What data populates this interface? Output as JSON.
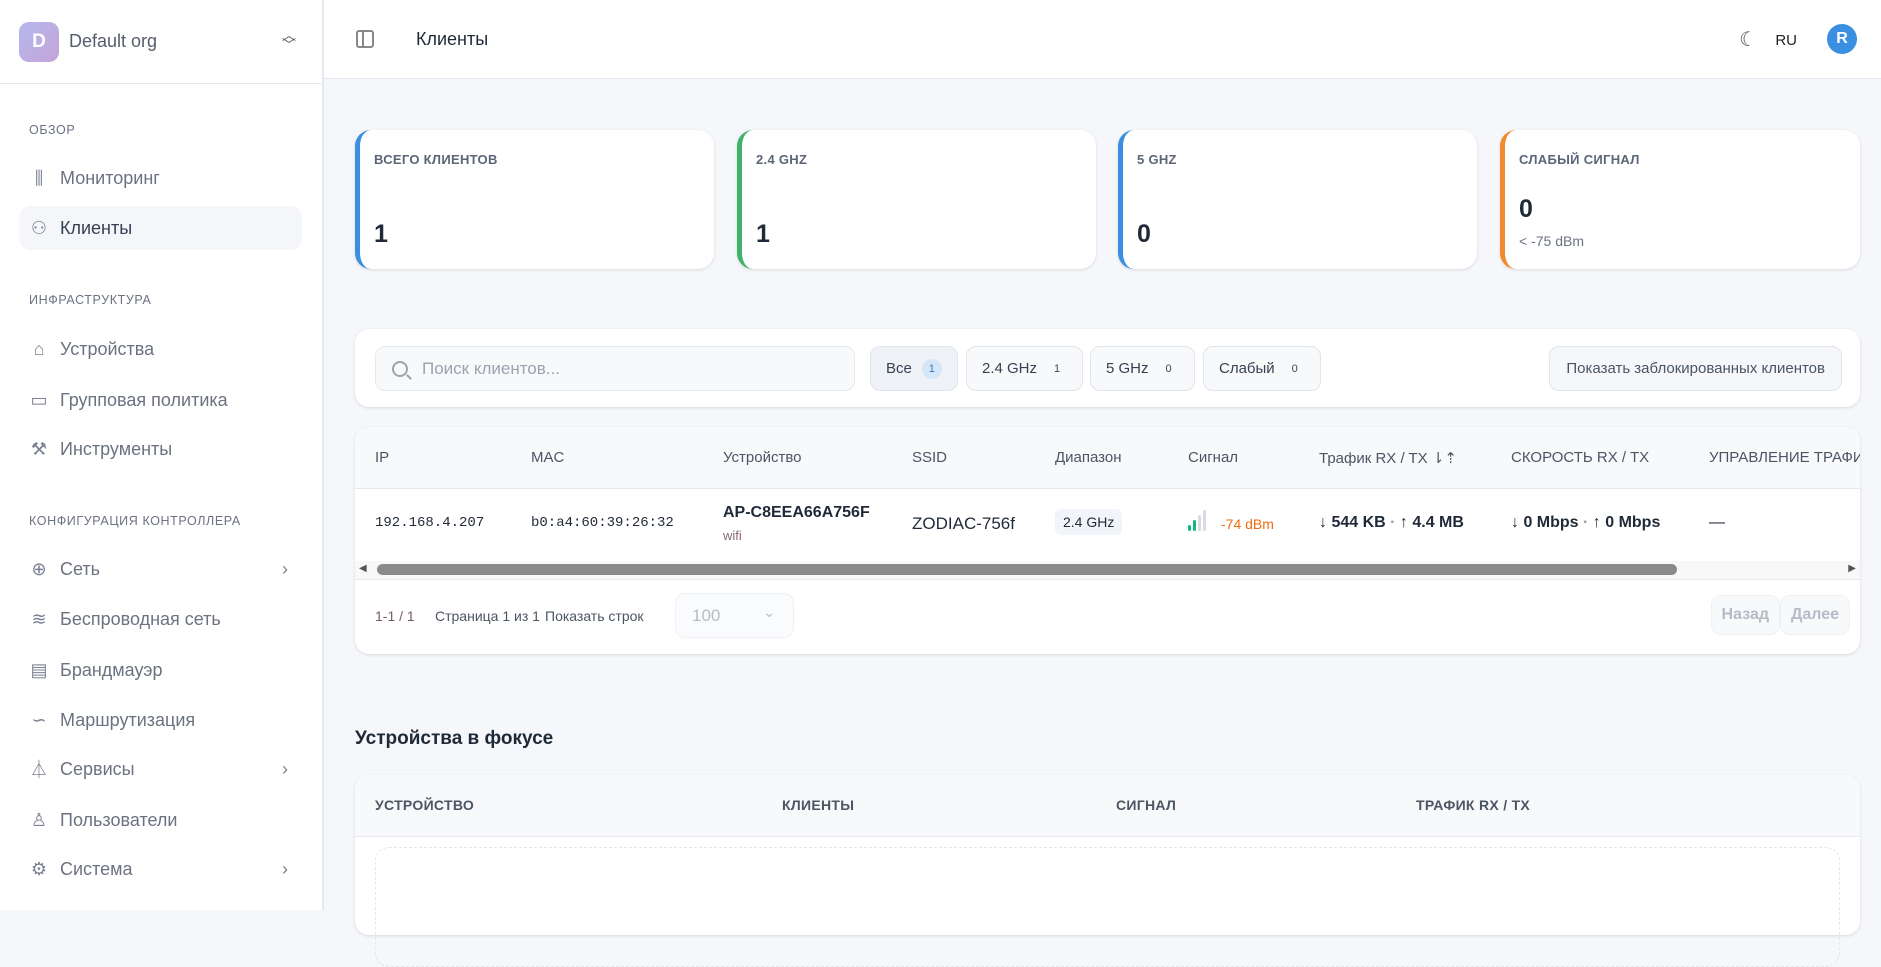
{
  "org": {
    "initial": "D",
    "name": "Default org"
  },
  "sidebar": {
    "sections": [
      {
        "label": "ОБЗОР",
        "items": [
          {
            "label": "Мониторинг",
            "icon": "bar-chart-icon"
          },
          {
            "label": "Клиенты",
            "icon": "users-icon",
            "active": true
          }
        ]
      },
      {
        "label": "ИНФРАСТРУКТУРА",
        "items": [
          {
            "label": "Устройства",
            "icon": "router-icon"
          },
          {
            "label": "Групповая политика",
            "icon": "folder-icon"
          },
          {
            "label": "Инструменты",
            "icon": "wrench-icon"
          }
        ]
      },
      {
        "label": "КОНФИГУРАЦИЯ КОНТРОЛЛЕРА",
        "items": [
          {
            "label": "Сеть",
            "icon": "globe-icon",
            "chevron": true
          },
          {
            "label": "Беспроводная сеть",
            "icon": "wifi-icon"
          },
          {
            "label": "Брандмауэр",
            "icon": "file-icon"
          },
          {
            "label": "Маршрутизация",
            "icon": "route-icon"
          },
          {
            "label": "Сервисы",
            "icon": "flask-icon",
            "chevron": true
          },
          {
            "label": "Пользователи",
            "icon": "user-icon"
          },
          {
            "label": "Система",
            "icon": "gear-icon",
            "chevron": true
          }
        ]
      }
    ]
  },
  "header": {
    "title": "Клиенты",
    "lang": "RU",
    "user_initial": "R"
  },
  "cards": [
    {
      "label": "ВСЕГО КЛИЕНТОВ",
      "value": "1",
      "color": "#3b8fe0"
    },
    {
      "label": "2.4 GHZ",
      "value": "1",
      "color": "#3fb36b"
    },
    {
      "label": "5 GHZ",
      "value": "0",
      "color": "#3b8fe0"
    },
    {
      "label": "СЛАБЫЙ СИГНАЛ",
      "value": "0",
      "sub": "< -75 dBm",
      "color": "#f08a2c"
    }
  ],
  "filters": {
    "search_placeholder": "Поиск клиентов...",
    "chips": [
      {
        "label": "Все",
        "count": "1"
      },
      {
        "label": "2.4 GHz",
        "count": "1"
      },
      {
        "label": "5 GHz",
        "count": "0"
      },
      {
        "label": "Слабый",
        "count": "0"
      }
    ],
    "blocked_label": "Показать заблокированных клиентов"
  },
  "table": {
    "headers": [
      "IP",
      "MAC",
      "Устройство",
      "SSID",
      "Диапазон",
      "Сигнал",
      "Трафик RX / TX ⇂⇡",
      "СКОРОСТЬ RX / TX",
      "УПРАВЛЕНИЕ ТРАФИ"
    ],
    "rows": [
      {
        "ip": "192.168.4.207",
        "mac": "b0:a4:60:39:26:32",
        "device": "AP-C8EEA66A756F",
        "device_type": "wifi",
        "ssid": "ZODIAC-756f",
        "band": "2.4 GHz",
        "signal": "-74 dBm",
        "signal_bars": 2,
        "traffic_rx": "↓ 544 KB",
        "traffic_tx": "↑ 4.4 MB",
        "speed_rx": "↓ 0 Mbps",
        "speed_tx": "↑ 0 Mbps",
        "control": "—"
      }
    ]
  },
  "pagination": {
    "range": "1-1 / 1",
    "page": "Страница 1 из 1",
    "rows_label": "Показать строк",
    "rows_value": "100",
    "prev": "Назад",
    "next": "Далее"
  },
  "focus": {
    "title": "Устройства в фокусе",
    "headers": [
      "УСТРОЙСТВО",
      "КЛИЕНТЫ",
      "СИГНАЛ",
      "ТРАФИК RX / TX"
    ]
  }
}
